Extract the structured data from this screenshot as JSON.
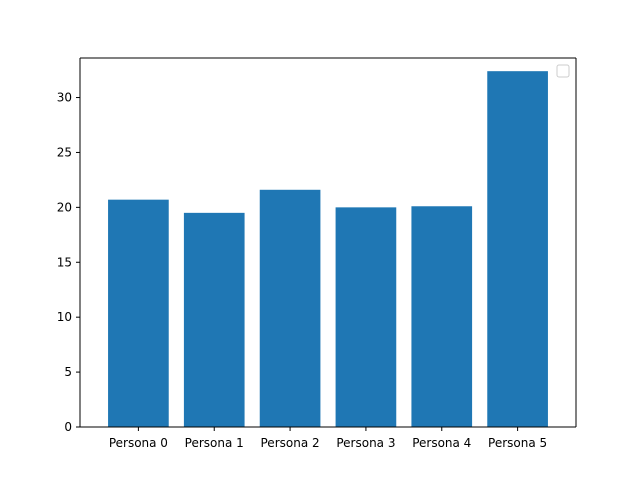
{
  "chart_data": {
    "type": "bar",
    "categories": [
      "Persona 0",
      "Persona 1",
      "Persona 2",
      "Persona 3",
      "Persona 4",
      "Persona 5"
    ],
    "values": [
      20.7,
      19.5,
      21.6,
      20.0,
      20.1,
      32.4
    ],
    "title": "",
    "xlabel": "",
    "ylabel": "",
    "ylim": [
      0,
      33.6
    ],
    "yticks": [
      0,
      5,
      10,
      15,
      20,
      25,
      30
    ],
    "bar_color": "#1f77b4",
    "grid": false,
    "legend": {
      "placement": "top-right",
      "entries": []
    }
  }
}
